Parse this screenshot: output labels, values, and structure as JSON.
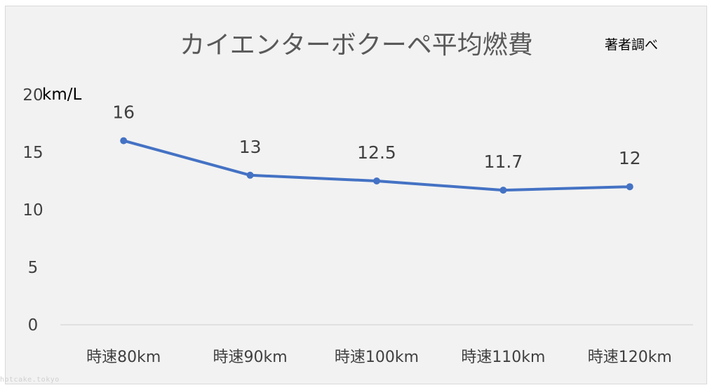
{
  "chart_data": {
    "type": "line",
    "title": "カイエンターボクーペ平均燃費",
    "subtitle": "著者調べ",
    "unit_label": "km/L",
    "categories": [
      "時速80km",
      "時速90km",
      "時速100km",
      "時速110km",
      "時速120km"
    ],
    "values": [
      16,
      13,
      12.5,
      11.7,
      12
    ],
    "data_labels": [
      "16",
      "13",
      "12.5",
      "11.7",
      "12"
    ],
    "y_ticks": [
      "0",
      "5",
      "10",
      "15",
      "20"
    ],
    "ylim": [
      0,
      20
    ],
    "grid": false,
    "legend": "none",
    "line_color": "#4472c4",
    "text_color": "#404040",
    "background": "#f2f2f2"
  },
  "watermark": "hotcake.tokyo"
}
